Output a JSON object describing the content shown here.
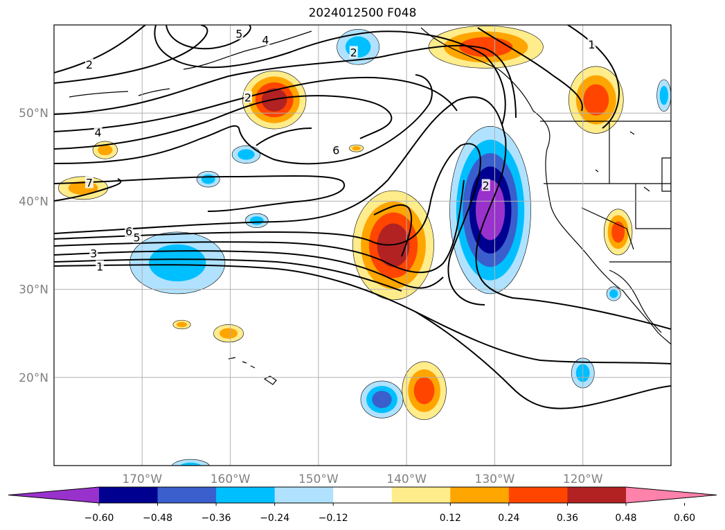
{
  "title": "2024012500 F048",
  "map": {
    "lon_range": [
      -180,
      -110
    ],
    "lat_range": [
      10,
      60
    ],
    "grid": true,
    "lon_ticks": [
      {
        "lon": -170,
        "label": "170°W"
      },
      {
        "lon": -160,
        "label": "160°W"
      },
      {
        "lon": -150,
        "label": "150°W"
      },
      {
        "lon": -140,
        "label": "140°W"
      },
      {
        "lon": -130,
        "label": "130°W"
      },
      {
        "lon": -120,
        "label": "120°W"
      }
    ],
    "lat_ticks": [
      {
        "lat": 50,
        "label": "50°N"
      },
      {
        "lat": 40,
        "label": "40°N"
      },
      {
        "lat": 30,
        "label": "30°N"
      },
      {
        "lat": 20,
        "label": "20°N"
      }
    ],
    "contour_labels": [
      {
        "text": "2",
        "lon": -176,
        "lat": 55.5
      },
      {
        "text": "5",
        "lon": -159,
        "lat": 59
      },
      {
        "text": "4",
        "lon": -156,
        "lat": 58.3
      },
      {
        "text": "2",
        "lon": -146,
        "lat": 56.9
      },
      {
        "text": "1",
        "lon": -119,
        "lat": 57.8
      },
      {
        "text": "2",
        "lon": -158,
        "lat": 51.8
      },
      {
        "text": "4",
        "lon": -175,
        "lat": 47.8
      },
      {
        "text": "6",
        "lon": -148,
        "lat": 45.8
      },
      {
        "text": "7",
        "lon": -176,
        "lat": 42.1
      },
      {
        "text": "2",
        "lon": -131,
        "lat": 41.8
      },
      {
        "text": "6",
        "lon": -171.5,
        "lat": 36.6
      },
      {
        "text": "5",
        "lon": -170.6,
        "lat": 35.9
      },
      {
        "text": "3",
        "lon": -175.5,
        "lat": 34.1
      },
      {
        "text": "1",
        "lon": -174.8,
        "lat": 32.6
      }
    ]
  },
  "colorbar": {
    "ticks": [
      "−0.60",
      "−0.48",
      "−0.36",
      "−0.24",
      "−0.12",
      "0.12",
      "0.24",
      "0.36",
      "0.48",
      "0.60"
    ],
    "colors": [
      "#9932cc",
      "#000090",
      "#3a5fcd",
      "#00bfff",
      "#b0e2ff",
      "#ffffff",
      "#ffec8b",
      "#ffa500",
      "#ff4500",
      "#b22222",
      "#ff82ab"
    ]
  },
  "anomalies": [
    {
      "lon": -155,
      "lat": 51.5,
      "rx": 3.6,
      "ry": 3.3,
      "colors": [
        "#ffec8b",
        "#ffa500",
        "#ff4500",
        "#b22222"
      ]
    },
    {
      "lon": -141.5,
      "lat": 35,
      "rx": 4.6,
      "ry": 6.2,
      "colors": [
        "#ffec8b",
        "#ffa500",
        "#ff4500",
        "#b22222"
      ]
    },
    {
      "lon": -130.5,
      "lat": 39,
      "rx": 4.6,
      "ry": 9.5,
      "colors": [
        "#b0e2ff",
        "#00bfff",
        "#3a5fcd",
        "#000090",
        "#9932cc"
      ]
    },
    {
      "lon": -131,
      "lat": 57.5,
      "rx": 6.5,
      "ry": 2.4,
      "colors": [
        "#ffec8b",
        "#ffa500",
        "#ff4500"
      ]
    },
    {
      "lon": -118.5,
      "lat": 51.5,
      "rx": 3.1,
      "ry": 3.8,
      "colors": [
        "#ffec8b",
        "#ffa500",
        "#ff4500"
      ]
    },
    {
      "lon": -166,
      "lat": 33,
      "rx": 5.4,
      "ry": 3.5,
      "colors": [
        "#b0e2ff",
        "#00bfff"
      ]
    },
    {
      "lon": -138,
      "lat": 18.5,
      "rx": 2.5,
      "ry": 3.3,
      "colors": [
        "#ffec8b",
        "#ffa500",
        "#ff4500"
      ]
    },
    {
      "lon": -142.8,
      "lat": 17.5,
      "rx": 2.4,
      "ry": 2.1,
      "colors": [
        "#b0e2ff",
        "#00bfff",
        "#3a5fcd"
      ]
    },
    {
      "lon": -116,
      "lat": 36.5,
      "rx": 1.6,
      "ry": 2.6,
      "colors": [
        "#ffec8b",
        "#ffa500",
        "#ff4500"
      ]
    },
    {
      "lon": -145.5,
      "lat": 57.5,
      "rx": 2.4,
      "ry": 2.0,
      "colors": [
        "#b0e2ff",
        "#00bfff"
      ]
    },
    {
      "lon": -176.7,
      "lat": 41.5,
      "rx": 2.8,
      "ry": 1.3,
      "colors": [
        "#ffec8b",
        "#ffa500"
      ]
    },
    {
      "lon": -174.2,
      "lat": 45.8,
      "rx": 1.4,
      "ry": 1.0,
      "colors": [
        "#ffec8b",
        "#ffa500"
      ]
    },
    {
      "lon": -160.2,
      "lat": 25.0,
      "rx": 1.7,
      "ry": 1.0,
      "colors": [
        "#ffec8b",
        "#ffa500"
      ]
    },
    {
      "lon": -158.2,
      "lat": 45.3,
      "rx": 1.6,
      "ry": 1.0,
      "colors": [
        "#b0e2ff",
        "#00bfff"
      ]
    },
    {
      "lon": -162.5,
      "lat": 42.5,
      "rx": 1.3,
      "ry": 0.9,
      "colors": [
        "#b0e2ff",
        "#00bfff"
      ]
    },
    {
      "lon": -157,
      "lat": 37.8,
      "rx": 1.3,
      "ry": 0.8,
      "colors": [
        "#b0e2ff",
        "#00bfff"
      ]
    },
    {
      "lon": -120.0,
      "lat": 20.5,
      "rx": 1.3,
      "ry": 1.7,
      "colors": [
        "#b0e2ff",
        "#00bfff"
      ]
    },
    {
      "lon": -110.8,
      "lat": 52.0,
      "rx": 0.8,
      "ry": 1.8,
      "colors": [
        "#b0e2ff",
        "#00bfff"
      ]
    },
    {
      "lon": -116.5,
      "lat": 29.5,
      "rx": 0.8,
      "ry": 0.8,
      "colors": [
        "#b0e2ff",
        "#00bfff"
      ]
    },
    {
      "lon": -164.5,
      "lat": 9.8,
      "rx": 2.2,
      "ry": 0.9,
      "colors": [
        "#b0e2ff",
        "#00bfff"
      ]
    },
    {
      "lon": -165.5,
      "lat": 26.0,
      "rx": 1.0,
      "ry": 0.5,
      "colors": [
        "#ffec8b",
        "#ffa500"
      ]
    },
    {
      "lon": -145.7,
      "lat": 46.0,
      "rx": 0.8,
      "ry": 0.4,
      "colors": [
        "#ffec8b",
        "#ffa500"
      ]
    }
  ]
}
